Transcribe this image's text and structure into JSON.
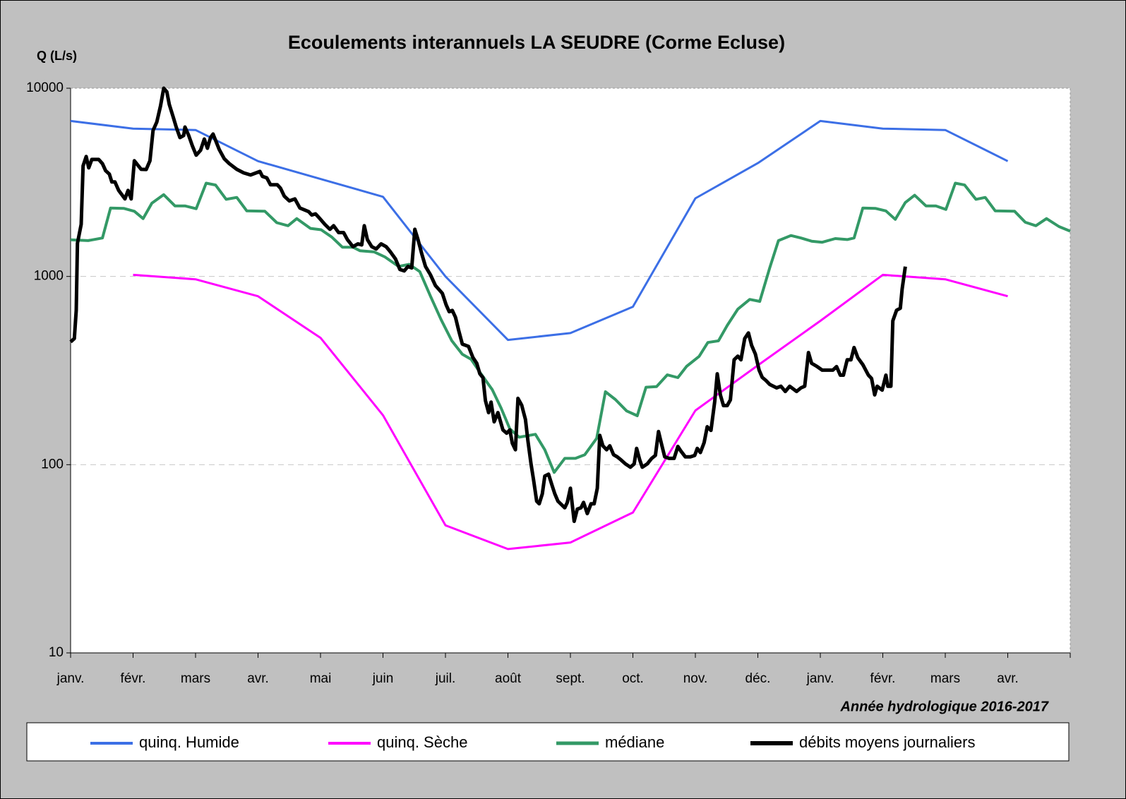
{
  "chart_data": {
    "type": "line",
    "title": "Ecoulements interannuels LA SEUDRE (Corme Ecluse)",
    "y_label": "Q (L/s)",
    "annotation": "Année hydrologique 2016-2017",
    "log_y": true,
    "grid": true,
    "legend": "bottom",
    "ylim": [
      10,
      10000
    ],
    "yticks": [
      10,
      100,
      1000,
      10000
    ],
    "xlim": [
      0,
      16
    ],
    "xticks": [
      {
        "value": 0,
        "label": "janv."
      },
      {
        "value": 1,
        "label": "févr."
      },
      {
        "value": 2,
        "label": "mars"
      },
      {
        "value": 3,
        "label": "avr."
      },
      {
        "value": 4,
        "label": "mai"
      },
      {
        "value": 5,
        "label": "juin"
      },
      {
        "value": 6,
        "label": "juil."
      },
      {
        "value": 7,
        "label": "août"
      },
      {
        "value": 8,
        "label": "sept."
      },
      {
        "value": 9,
        "label": "oct."
      },
      {
        "value": 10,
        "label": "nov."
      },
      {
        "value": 11,
        "label": "déc."
      },
      {
        "value": 12,
        "label": "janv."
      },
      {
        "value": 13,
        "label": "févr."
      },
      {
        "value": 14,
        "label": "mars"
      },
      {
        "value": 15,
        "label": "avr."
      }
    ],
    "series": [
      {
        "name": "quinq. Humide",
        "color": "#3c6fe6",
        "width": 3,
        "x": [
          0,
          1,
          2,
          3,
          5,
          6,
          7,
          8,
          9,
          10,
          11,
          12,
          13,
          14,
          15
        ],
        "values": [
          6700,
          6100,
          6000,
          4100,
          2650,
          1000,
          460,
          500,
          690,
          2600,
          4000,
          6700,
          6100,
          6000,
          4100
        ]
      },
      {
        "name": "quinq. Sèche",
        "color": "#ff00ff",
        "width": 3,
        "x": [
          1,
          2,
          3,
          4,
          5,
          6,
          7,
          8,
          9,
          10,
          11,
          12,
          13,
          14,
          15
        ],
        "values": [
          1020,
          966,
          785,
          472,
          183,
          47.6,
          35.6,
          38.6,
          55.7,
          194,
          337,
          581,
          1020,
          966,
          785
        ]
      },
      {
        "name": "médiane",
        "color": "#339966",
        "width": 4,
        "x": [
          0,
          0.28,
          0.51,
          0.64,
          0.85,
          1.02,
          1.16,
          1.3,
          1.49,
          1.67,
          1.83,
          2.01,
          2.17,
          2.32,
          2.49,
          2.66,
          2.82,
          3.11,
          3.3,
          3.48,
          3.62,
          3.84,
          4.01,
          4.18,
          4.35,
          4.52,
          4.63,
          4.86,
          5.03,
          5.25,
          5.42,
          5.59,
          5.76,
          5.93,
          6.1,
          6.27,
          6.41,
          6.55,
          6.75,
          6.89,
          7.03,
          7.18,
          7.44,
          7.59,
          7.74,
          7.91,
          8.08,
          8.23,
          8.42,
          8.56,
          8.72,
          8.9,
          9.07,
          9.21,
          9.38,
          9.55,
          9.72,
          9.86,
          10.06,
          10.2,
          10.37,
          10.51,
          10.68,
          10.87,
          11.03,
          11.19,
          11.33,
          11.53,
          11.69,
          11.86,
          12.03,
          12.24,
          12.43,
          12.54,
          12.68,
          12.88,
          13.05,
          13.2,
          13.36,
          13.51,
          13.69,
          13.85,
          14.01,
          14.16,
          14.31,
          14.49,
          14.64,
          14.8,
          15.11,
          15.28,
          15.45,
          15.62,
          15.82,
          16
        ],
        "values": [
          1566,
          1550,
          1600,
          2310,
          2300,
          2220,
          2030,
          2450,
          2720,
          2370,
          2370,
          2290,
          3130,
          3060,
          2570,
          2630,
          2230,
          2220,
          1930,
          1860,
          2030,
          1800,
          1770,
          1620,
          1430,
          1430,
          1370,
          1350,
          1270,
          1130,
          1160,
          1060,
          785,
          590,
          456,
          386,
          363,
          310,
          250,
          200,
          155,
          140,
          145,
          120,
          91,
          108,
          108,
          113,
          138,
          244,
          222,
          193,
          182,
          258,
          260,
          300,
          290,
          333,
          376,
          446,
          455,
          549,
          671,
          755,
          737,
          1110,
          1550,
          1650,
          1600,
          1540,
          1520,
          1590,
          1570,
          1600,
          2310,
          2300,
          2230,
          2010,
          2470,
          2700,
          2370,
          2370,
          2270,
          3130,
          3060,
          2570,
          2630,
          2230,
          2220,
          1940,
          1860,
          2030,
          1840,
          1740
        ]
      },
      {
        "name": "débits moyens journaliers",
        "color": "#000000",
        "width": 5,
        "x": [
          0,
          0.06,
          0.09,
          0.11,
          0.17,
          0.2,
          0.25,
          0.29,
          0.34,
          0.45,
          0.51,
          0.56,
          0.62,
          0.66,
          0.71,
          0.77,
          0.87,
          0.92,
          0.97,
          1.02,
          1.13,
          1.21,
          1.27,
          1.32,
          1.38,
          1.44,
          1.49,
          1.54,
          1.58,
          1.64,
          1.69,
          1.75,
          1.81,
          1.83,
          1.89,
          1.95,
          2.01,
          2.08,
          2.14,
          2.19,
          2.24,
          2.28,
          2.38,
          2.46,
          2.54,
          2.66,
          2.77,
          2.88,
          3.03,
          3.07,
          3.14,
          3.2,
          3.31,
          3.36,
          3.42,
          3.5,
          3.59,
          3.67,
          3.81,
          3.86,
          3.92,
          3.99,
          4.07,
          4.15,
          4.21,
          4.29,
          4.37,
          4.43,
          4.52,
          4.6,
          4.66,
          4.7,
          4.75,
          4.82,
          4.89,
          4.97,
          5.05,
          5.12,
          5.2,
          5.27,
          5.34,
          5.4,
          5.46,
          5.51,
          5.56,
          5.62,
          5.68,
          5.76,
          5.84,
          5.9,
          5.95,
          6.01,
          6.06,
          6.11,
          6.16,
          6.21,
          6.27,
          6.37,
          6.44,
          6.5,
          6.55,
          6.6,
          6.64,
          6.69,
          6.73,
          6.78,
          6.84,
          6.92,
          6.98,
          7.03,
          7.07,
          7.12,
          7.16,
          7.22,
          7.28,
          7.32,
          7.37,
          7.41,
          7.46,
          7.5,
          7.55,
          7.59,
          7.65,
          7.71,
          7.75,
          7.8,
          7.91,
          7.95,
          8.0,
          8.06,
          8.11,
          8.17,
          8.21,
          8.27,
          8.33,
          8.38,
          8.43,
          8.47,
          8.52,
          8.58,
          8.63,
          8.69,
          8.75,
          8.81,
          8.88,
          8.96,
          9.02,
          9.06,
          9.11,
          9.15,
          9.23,
          9.3,
          9.36,
          9.41,
          9.46,
          9.51,
          9.58,
          9.66,
          9.72,
          9.77,
          9.84,
          9.92,
          9.99,
          10.03,
          10.08,
          10.14,
          10.19,
          10.25,
          10.31,
          10.35,
          10.4,
          10.45,
          10.51,
          10.56,
          10.62,
          10.68,
          10.73,
          10.79,
          10.85,
          10.9,
          10.96,
          11.02,
          11.07,
          11.13,
          11.19,
          11.3,
          11.37,
          11.44,
          11.51,
          11.62,
          11.69,
          11.75,
          11.81,
          11.86,
          11.95,
          12.03,
          12.2,
          12.26,
          12.32,
          12.37,
          12.43,
          12.49,
          12.54,
          12.6,
          12.68,
          12.77,
          12.82,
          12.87,
          12.91,
          12.99,
          13.05,
          13.08,
          13.13,
          13.16,
          13.22,
          13.28,
          13.31,
          13.36
        ],
        "values": [
          449,
          468,
          661,
          1500,
          1892,
          3873,
          4335,
          3776,
          4184,
          4184,
          3975,
          3646,
          3500,
          3177,
          3177,
          2864,
          2583,
          2864,
          2583,
          4115,
          3707,
          3700,
          4115,
          5960,
          6610,
          8060,
          10000,
          9580,
          8200,
          7080,
          6220,
          5470,
          5610,
          6220,
          5610,
          4930,
          4410,
          4680,
          5370,
          4800,
          5470,
          5710,
          4720,
          4220,
          3975,
          3707,
          3550,
          3460,
          3614,
          3400,
          3340,
          3070,
          3070,
          2940,
          2670,
          2520,
          2583,
          2310,
          2210,
          2120,
          2150,
          2030,
          1890,
          1780,
          1860,
          1710,
          1710,
          1570,
          1440,
          1490,
          1470,
          1860,
          1570,
          1440,
          1400,
          1490,
          1440,
          1350,
          1240,
          1090,
          1070,
          1130,
          1110,
          1780,
          1570,
          1320,
          1130,
          1020,
          894,
          850,
          813,
          708,
          650,
          660,
          607,
          519,
          437,
          425,
          371,
          346,
          304,
          290,
          219,
          189,
          215,
          169,
          189,
          153,
          147,
          153,
          130,
          120,
          225,
          207,
          174,
          134,
          101,
          83,
          64,
          62,
          70,
          87,
          89,
          77,
          70,
          64,
          59,
          63,
          75,
          50,
          58,
          59,
          63,
          55,
          62,
          62,
          75,
          143,
          126,
          120,
          126,
          113,
          110,
          106,
          101,
          97,
          101,
          122,
          106,
          97,
          101,
          108,
          112,
          150,
          128,
          110,
          108,
          108,
          125,
          118,
          110,
          110,
          112,
          122,
          116,
          131,
          159,
          152,
          216,
          304,
          235,
          206,
          206,
          221,
          361,
          377,
          361,
          468,
          501,
          430,
          387,
          318,
          291,
          280,
          267,
          256,
          261,
          245,
          261,
          245,
          256,
          261,
          394,
          346,
          332,
          318,
          318,
          332,
          299,
          299,
          361,
          361,
          419,
          370,
          340,
          299,
          287,
          235,
          261,
          249,
          299,
          261,
          261,
          581,
          661,
          678,
          857,
          1128
        ]
      }
    ]
  }
}
